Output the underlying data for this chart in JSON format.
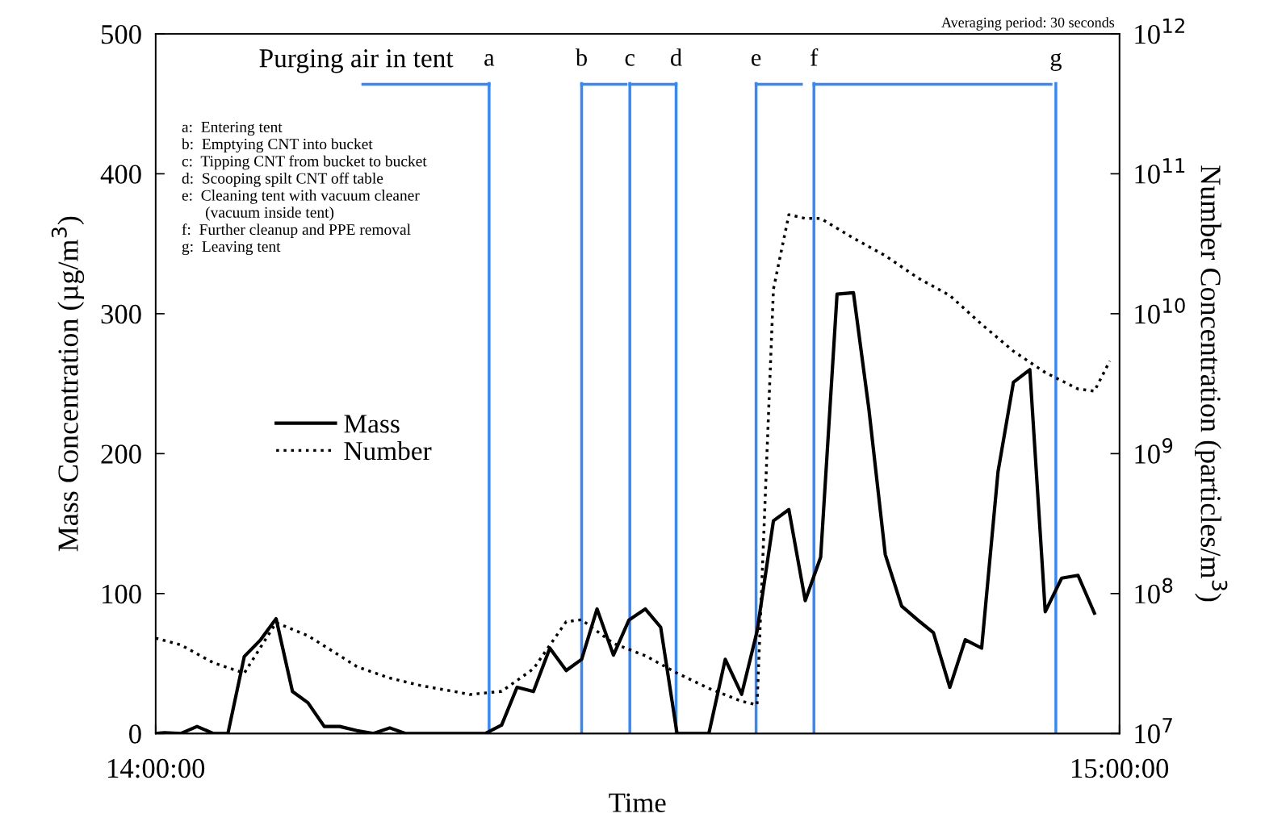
{
  "chart_data": {
    "type": "line",
    "xlabel": "Time",
    "ylabel": "Mass Concentration (µg/m$^{3}$)",
    "y2label": "Number Concentration (particles/m$^{3}$)",
    "xlim": [
      14,
      15
    ],
    "xticks": [
      {
        "value": 14,
        "label": "14:00:00"
      },
      {
        "value": 15,
        "label": "15:00:00"
      }
    ],
    "ylim": [
      0,
      500
    ],
    "yticks": [
      0,
      100,
      200,
      300,
      400,
      500
    ],
    "log": "y2",
    "y2lim": [
      10000000.0,
      1000000000000.0
    ],
    "y2ticks": [
      {
        "value": 10000000.0,
        "label": "10$^{7}$"
      },
      {
        "value": 100000000.0,
        "label": "10$^{8}$"
      },
      {
        "value": 1000000000.0,
        "label": "10$^{9}$"
      },
      {
        "value": 10000000000.0,
        "label": "10$^{10}$"
      },
      {
        "value": 100000000000.0,
        "label": "10$^{11}$"
      },
      {
        "value": 1000000000000.0,
        "label": "10$^{12}$"
      }
    ],
    "grid": false,
    "legend": "center left",
    "marker": "none",
    "series": [
      {
        "name": "Mass",
        "color": "#000000",
        "line_style": "solid",
        "x": [
          14.0,
          14.009,
          14.026,
          14.043,
          14.06,
          14.075,
          14.092,
          14.109,
          14.125,
          14.142,
          14.158,
          14.175,
          14.191,
          14.209,
          14.226,
          14.243,
          14.259,
          14.276,
          14.293,
          14.309,
          14.326,
          14.342,
          14.359,
          14.375,
          14.392,
          14.409,
          14.426,
          14.442,
          14.458,
          14.475,
          14.491,
          14.508,
          14.524,
          14.541,
          14.557,
          14.574,
          14.591,
          14.608,
          14.624,
          14.641,
          14.657,
          14.674,
          14.69,
          14.707,
          14.724,
          14.74,
          14.757,
          14.774,
          14.791,
          14.807,
          14.824,
          14.84,
          14.857,
          14.874,
          14.89,
          14.907,
          14.923,
          14.94,
          14.957,
          14.974
        ],
        "values": [
          0,
          0.5,
          0,
          5,
          0,
          0,
          55,
          67,
          82,
          30,
          22,
          5,
          5,
          2,
          0,
          4,
          0,
          0,
          0,
          0,
          0,
          0,
          6,
          33,
          30,
          61,
          45,
          53,
          89,
          56,
          81,
          89,
          76,
          0,
          0,
          0,
          53,
          28,
          73,
          152,
          160,
          95,
          126,
          314,
          315,
          232,
          128,
          91,
          81,
          72,
          33,
          67,
          61,
          187,
          251,
          260,
          87,
          111,
          113,
          86
        ]
      },
      {
        "name": "Number",
        "color": "#000000",
        "line_style": "dotted",
        "axis": "y2",
        "x": [
          14.0,
          14.026,
          14.06,
          14.092,
          14.125,
          14.158,
          14.191,
          14.209,
          14.242,
          14.275,
          14.309,
          14.326,
          14.359,
          14.392,
          14.426,
          14.442,
          14.475,
          14.508,
          14.541,
          14.574,
          14.608,
          14.624,
          14.641,
          14.657,
          14.674,
          14.69,
          14.723,
          14.757,
          14.791,
          14.824,
          14.857,
          14.89,
          14.923,
          14.957,
          14.974,
          14.99
        ],
        "values": [
          48000000.0,
          43000000.0,
          32000000.0,
          27000000.0,
          62000000.0,
          50000000.0,
          36000000.0,
          30000000.0,
          25000000.0,
          22000000.0,
          20000000.0,
          19000000.0,
          20000000.0,
          29000000.0,
          63000000.0,
          65000000.0,
          44000000.0,
          36000000.0,
          27000000.0,
          21000000.0,
          17000000.0,
          16000000.0,
          15000000000.0,
          51000000000.0,
          48000000000.0,
          48000000000.0,
          35000000000.0,
          26000000000.0,
          18000000000.0,
          13500000000.0,
          8400000000.0,
          5400000000.0,
          3800000000.0,
          2900000000.0,
          2800000000.0,
          4600000000.0
        ]
      },
      {
        "color": "#3388ff",
        "line_style": "solid",
        "x": [
          14.215,
          14.346
        ],
        "values": [
          464,
          464
        ]
      },
      {
        "color": "#3388ff",
        "line_style": "solid",
        "x": [
          14.442,
          14.488
        ],
        "values": [
          464,
          464
        ]
      },
      {
        "color": "#3388ff",
        "line_style": "solid",
        "x": [
          14.492,
          14.54
        ],
        "values": [
          464,
          464
        ]
      },
      {
        "color": "#3388ff",
        "line_style": "solid",
        "x": [
          14.623,
          14.67
        ],
        "values": [
          464,
          464
        ]
      },
      {
        "color": "#3388ff",
        "line_style": "solid",
        "x": [
          14.683,
          14.929
        ],
        "values": [
          464,
          464
        ]
      }
    ],
    "ref_lines": [
      {
        "axis": "x",
        "value": 14.346,
        "label": "a",
        "color": "#3388ff"
      },
      {
        "axis": "x",
        "value": 14.442,
        "label": "b",
        "color": "#3388ff"
      },
      {
        "axis": "x",
        "value": 14.492,
        "label": "c",
        "color": "#3388ff"
      },
      {
        "axis": "x",
        "value": 14.54,
        "label": "d",
        "color": "#3388ff"
      },
      {
        "axis": "x",
        "value": 14.623,
        "label": "e",
        "color": "#3388ff"
      },
      {
        "axis": "x",
        "value": 14.683,
        "label": "f",
        "color": "#3388ff"
      },
      {
        "axis": "x",
        "value": 14.934,
        "label": "g",
        "color": "#3388ff"
      }
    ],
    "annotations": [
      {
        "text": "Purging air in tent",
        "x": 14.215,
        "y": 464
      },
      "Averaging period: 30 seconds",
      "a:  Entering tent",
      "b:  Emptying CNT into bucket",
      "c:  Tipping CNT from bucket to bucket",
      "d:  Scooping spilt CNT off table",
      "e:  Cleaning tent with vacuum cleaner\n      (vacuum inside tent)",
      "f:  Further cleanup and PPE removal",
      "g:  Leaving tent"
    ]
  }
}
